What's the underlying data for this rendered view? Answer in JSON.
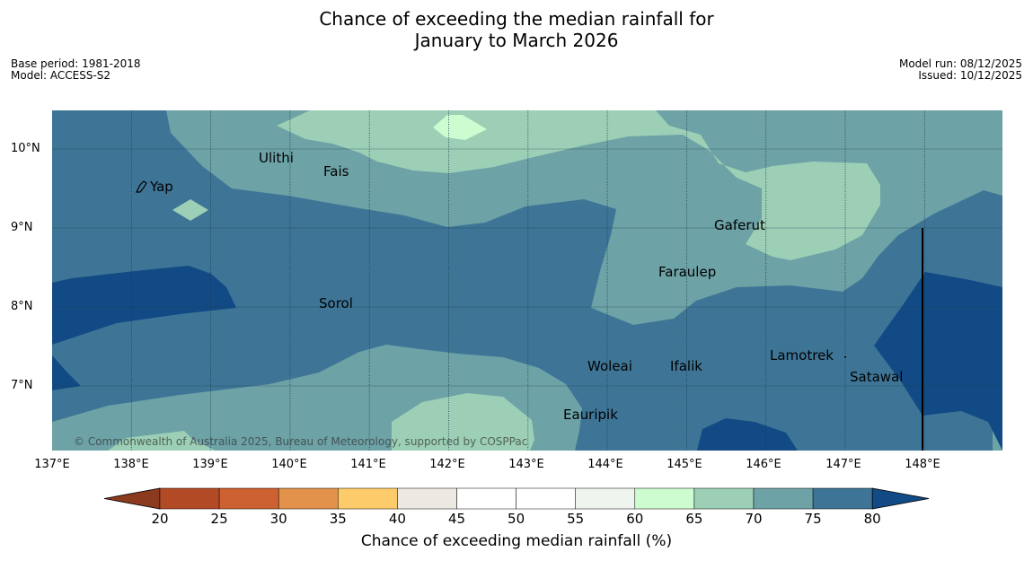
{
  "title": {
    "line1": "Chance of exceeding the median rainfall for",
    "line2": "January to March 2026"
  },
  "meta": {
    "base_period": "Base period: 1981-2018",
    "model": "Model: ACCESS-S2",
    "model_run": "Model run: 08/12/2025",
    "issued": "Issued: 10/12/2025"
  },
  "map": {
    "lon_labels": [
      "137°E",
      "138°E",
      "139°E",
      "140°E",
      "141°E",
      "142°E",
      "143°E",
      "144°E",
      "145°E",
      "146°E",
      "147°E",
      "148°E"
    ],
    "lat_labels": [
      "10°N",
      "9°N",
      "8°N",
      "7°N"
    ],
    "places": [
      "Ulithi",
      "Fais",
      "Yap",
      "Gaferut",
      "Faraulep",
      "Sorol",
      "Lamotrek",
      "Woleai",
      "Ifalik",
      "Satawal",
      "Eauripik"
    ],
    "copyright": "© Commonwealth of Australia 2025, Bureau of Meteorology, supported by COSPPac",
    "colors": {
      "p80": "#124a85",
      "p75_80": "#3e7596",
      "p70_75": "#6da2a6",
      "p65_70": "#9ccfb6",
      "p60_65": "#ccfcd0"
    }
  },
  "colorbar": {
    "ticks": [
      "20",
      "25",
      "30",
      "35",
      "40",
      "45",
      "50",
      "55",
      "60",
      "65",
      "70",
      "75",
      "80"
    ],
    "colors": [
      "#8b3a1e",
      "#b34a26",
      "#cd6131",
      "#e2924a",
      "#fecb6a",
      "#ece9e3",
      "#ffffff",
      "#ffffff",
      "#eef5ee",
      "#ccfcd0",
      "#9ccfb6",
      "#6da2a6",
      "#3e7596",
      "#124a85"
    ],
    "label": "Chance of exceeding median rainfall (%)"
  }
}
